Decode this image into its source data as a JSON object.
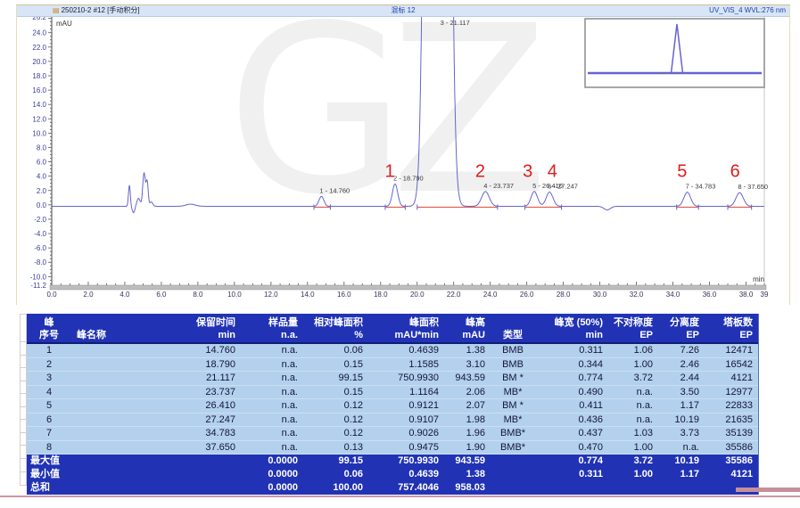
{
  "chromatogram": {
    "title_left": "250210-2 #12 [手动积分]",
    "title_center": "混标 12",
    "title_right": "UV_VIS_4 WVL:276 nm",
    "y_unit_label": "mAU",
    "x_unit_label": "min"
  },
  "chart_data": {
    "type": "line",
    "title": "250210-2 #12 [手动积分]",
    "sample_name": "混标 12",
    "channel": "UV_VIS_4 WVL:276 nm",
    "xlabel": "min",
    "ylabel": "mAU",
    "xlim": [
      0,
      39
    ],
    "ylim": [
      -11.2,
      26.2
    ],
    "x_major_step": 2,
    "x_minor_step": 0.5,
    "y_minor_step": 0.5,
    "x_tick_labels": [
      "0.0",
      "2.0",
      "4.0",
      "6.0",
      "8.0",
      "10.0",
      "12.0",
      "14.0",
      "16.0",
      "18.0",
      "20.0",
      "22.0",
      "24.0",
      "26.0",
      "28.0",
      "30.0",
      "32.0",
      "34.0",
      "36.0",
      "38.0",
      "39"
    ],
    "y_tick_labels": [
      "26.2",
      "24.0",
      "22.0",
      "20.0",
      "18.0",
      "16.0",
      "14.0",
      "12.0",
      "10.0",
      "8.0",
      "6.0",
      "4.0",
      "2.0",
      "0.0",
      "-2.0",
      "-4.0",
      "-6.0",
      "-8.0",
      "-10.0",
      "-11.2"
    ],
    "baseline_mAU": -0.2,
    "trace_color": "#6565cd",
    "integration_color": "#e0604f",
    "annotation_color": "#dd1c1c",
    "label_baseline_mAU": 3.9,
    "labeled_peaks": [
      {
        "n": 1,
        "rt": 14.76,
        "height": 1.38,
        "sigma": 0.132,
        "label": "1 - 14.760"
      },
      {
        "n": 2,
        "rt": 18.79,
        "height": 3.1,
        "sigma": 0.146,
        "label": "2 - 18.790"
      },
      {
        "n": 3,
        "rt": 21.117,
        "height": 943.59,
        "sigma": 0.329,
        "label": "3 - 21.117"
      },
      {
        "n": 4,
        "rt": 23.737,
        "height": 2.06,
        "sigma": 0.208,
        "label": "4 - 23.737"
      },
      {
        "n": 5,
        "rt": 26.41,
        "height": 2.07,
        "sigma": 0.175,
        "label": "5 - 26.410"
      },
      {
        "n": 6,
        "rt": 27.247,
        "height": 1.98,
        "sigma": 0.185,
        "label": "6 - 27.247"
      },
      {
        "n": 7,
        "rt": 34.783,
        "height": 1.96,
        "sigma": 0.186,
        "label": "7 - 34.783"
      },
      {
        "n": 8,
        "rt": 37.65,
        "height": 1.9,
        "sigma": 0.2,
        "label": "8 - 37.650"
      }
    ],
    "unlabeled_features": [
      {
        "rt": 4.25,
        "height": 2.9,
        "sigma": 0.05
      },
      {
        "rt": 4.48,
        "height": -0.9,
        "sigma": 0.07
      },
      {
        "rt": 4.75,
        "height": 1.1,
        "sigma": 0.09
      },
      {
        "rt": 5.05,
        "height": 4.6,
        "sigma": 0.07
      },
      {
        "rt": 5.22,
        "height": 3.4,
        "sigma": 0.06
      },
      {
        "rt": 5.45,
        "height": 0.6,
        "sigma": 0.08
      },
      {
        "rt": 7.6,
        "height": 0.3,
        "sigma": 0.25
      },
      {
        "rt": 30.4,
        "height": -0.5,
        "sigma": 0.18
      }
    ],
    "red_annotations": [
      {
        "label": "1",
        "rt": 18.5
      },
      {
        "label": "2",
        "rt": 23.45
      },
      {
        "label": "3",
        "rt": 26.05
      },
      {
        "label": "4",
        "rt": 27.4
      },
      {
        "label": "5",
        "rt": 34.5
      },
      {
        "label": "6",
        "rt": 37.4
      }
    ],
    "integration_segments": [
      [
        14.35,
        15.25
      ],
      [
        18.25,
        19.35
      ],
      [
        20.0,
        24.4
      ],
      [
        25.9,
        27.9
      ],
      [
        34.2,
        35.4
      ],
      [
        37.0,
        38.3
      ]
    ],
    "inset": {
      "peak_position": 0.52
    },
    "watermark": "GZ"
  },
  "table": {
    "columns": [
      {
        "l1": "峰",
        "l2": "序号"
      },
      {
        "l1": "峰名称",
        "l2": ""
      },
      {
        "l1": "保留时间",
        "l2": "min"
      },
      {
        "l1": "样品量",
        "l2": "n.a."
      },
      {
        "l1": "相对峰面积",
        "l2": "%"
      },
      {
        "l1": "峰面积",
        "l2": "mAU*min"
      },
      {
        "l1": "峰高",
        "l2": "mAU"
      },
      {
        "l1": "类型",
        "l2": ""
      },
      {
        "l1": "峰宽 (50%)",
        "l2": "min"
      },
      {
        "l1": "不对称度",
        "l2": "EP"
      },
      {
        "l1": "分离度",
        "l2": "EP"
      },
      {
        "l1": "塔板数",
        "l2": "EP"
      }
    ],
    "rows": [
      [
        "1",
        "",
        "14.760",
        "n.a.",
        "0.06",
        "0.4639",
        "1.38",
        "BMB",
        "0.311",
        "1.06",
        "7.26",
        "12471"
      ],
      [
        "2",
        "",
        "18.790",
        "n.a.",
        "0.15",
        "1.1585",
        "3.10",
        "BMB",
        "0.344",
        "1.00",
        "2.46",
        "16542"
      ],
      [
        "3",
        "",
        "21.117",
        "n.a.",
        "99.15",
        "750.9930",
        "943.59",
        "BM *",
        "0.774",
        "3.72",
        "2.44",
        "4121"
      ],
      [
        "4",
        "",
        "23.737",
        "n.a.",
        "0.15",
        "1.1164",
        "2.06",
        "MB*",
        "0.490",
        "n.a.",
        "3.50",
        "12977"
      ],
      [
        "5",
        "",
        "26.410",
        "n.a.",
        "0.12",
        "0.9121",
        "2.07",
        "BM *",
        "0.411",
        "n.a.",
        "1.17",
        "22833"
      ],
      [
        "6",
        "",
        "27.247",
        "n.a.",
        "0.12",
        "0.9107",
        "1.98",
        "MB*",
        "0.436",
        "n.a.",
        "10.19",
        "21635"
      ],
      [
        "7",
        "",
        "34.783",
        "n.a.",
        "0.12",
        "0.9026",
        "1.96",
        "BMB*",
        "0.437",
        "1.03",
        "3.73",
        "35139"
      ],
      [
        "8",
        "",
        "37.650",
        "n.a.",
        "0.13",
        "0.9475",
        "1.90",
        "BMB*",
        "0.470",
        "1.00",
        "n.a.",
        "35586"
      ]
    ],
    "summary_rows": [
      [
        "最大值",
        "",
        "",
        "0.0000",
        "99.15",
        "750.9930",
        "943.59",
        "",
        "0.774",
        "3.72",
        "10.19",
        "35586"
      ],
      [
        "最小值",
        "",
        "",
        "0.0000",
        "0.06",
        "0.4639",
        "1.38",
        "",
        "0.311",
        "1.00",
        "1.17",
        "4121"
      ],
      [
        "总和",
        "",
        "",
        "0.0000",
        "100.00",
        "757.4046",
        "958.03",
        "",
        "",
        "",
        "",
        ""
      ]
    ]
  }
}
